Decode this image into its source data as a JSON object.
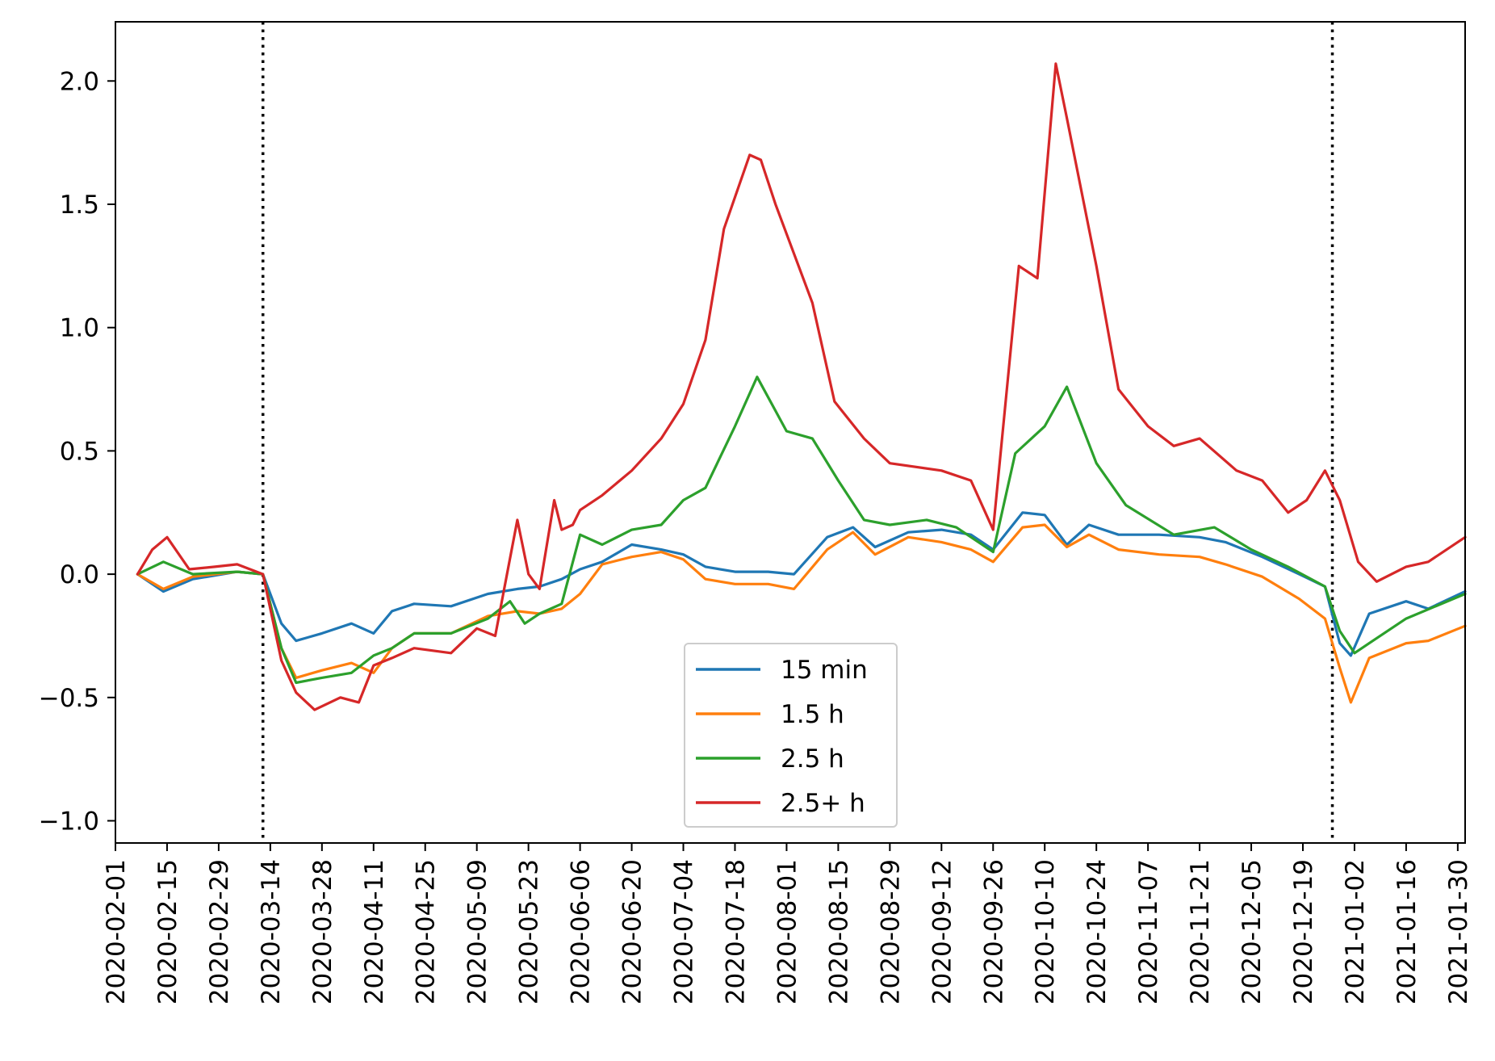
{
  "chart_data": {
    "type": "line",
    "title": "",
    "xlabel": "",
    "ylabel": "",
    "ylim": [
      -1.09,
      2.24
    ],
    "xlim": [
      "2020-02-01",
      "2021-02-01"
    ],
    "grid": false,
    "legend_position": "lower center",
    "x_ticks": [
      "2020-02-01",
      "2020-02-15",
      "2020-02-29",
      "2020-03-14",
      "2020-03-28",
      "2020-04-11",
      "2020-04-25",
      "2020-05-09",
      "2020-05-23",
      "2020-06-06",
      "2020-06-20",
      "2020-07-04",
      "2020-07-18",
      "2020-08-01",
      "2020-08-15",
      "2020-08-29",
      "2020-09-12",
      "2020-09-26",
      "2020-10-10",
      "2020-10-24",
      "2020-11-07",
      "2020-11-21",
      "2020-12-05",
      "2020-12-19",
      "2021-01-02",
      "2021-01-16",
      "2021-01-30"
    ],
    "y_ticks": [
      {
        "value": -1.0,
        "label": "−1.0"
      },
      {
        "value": -0.5,
        "label": "−0.5"
      },
      {
        "value": 0.0,
        "label": "0.0"
      },
      {
        "value": 0.5,
        "label": "0.5"
      },
      {
        "value": 1.0,
        "label": "1.0"
      },
      {
        "value": 1.5,
        "label": "1.5"
      },
      {
        "value": 2.0,
        "label": "2.0"
      }
    ],
    "vlines": [
      "2020-03-12",
      "2020-12-27"
    ],
    "series": [
      {
        "name": "15 min",
        "color": "#1f77b4",
        "x": [
          "2020-02-07",
          "2020-02-14",
          "2020-02-22",
          "2020-03-05",
          "2020-03-12",
          "2020-03-17",
          "2020-03-21",
          "2020-03-28",
          "2020-04-05",
          "2020-04-11",
          "2020-04-16",
          "2020-04-22",
          "2020-05-02",
          "2020-05-12",
          "2020-05-20",
          "2020-05-26",
          "2020-06-01",
          "2020-06-06",
          "2020-06-12",
          "2020-06-20",
          "2020-06-28",
          "2020-07-04",
          "2020-07-10",
          "2020-07-18",
          "2020-07-27",
          "2020-08-03",
          "2020-08-12",
          "2020-08-19",
          "2020-08-25",
          "2020-09-03",
          "2020-09-12",
          "2020-09-20",
          "2020-09-26",
          "2020-10-04",
          "2020-10-10",
          "2020-10-16",
          "2020-10-22",
          "2020-10-30",
          "2020-11-10",
          "2020-11-21",
          "2020-11-28",
          "2020-12-08",
          "2020-12-18",
          "2020-12-25",
          "2020-12-29",
          "2021-01-01",
          "2021-01-06",
          "2021-01-16",
          "2021-01-22",
          "2021-02-01"
        ],
        "values": [
          0.0,
          -0.07,
          -0.02,
          0.01,
          0.0,
          -0.2,
          -0.27,
          -0.24,
          -0.2,
          -0.24,
          -0.15,
          -0.12,
          -0.13,
          -0.08,
          -0.06,
          -0.05,
          -0.02,
          0.02,
          0.05,
          0.12,
          0.1,
          0.08,
          0.03,
          0.01,
          0.01,
          0.0,
          0.15,
          0.19,
          0.11,
          0.17,
          0.18,
          0.16,
          0.1,
          0.25,
          0.24,
          0.12,
          0.2,
          0.16,
          0.16,
          0.15,
          0.13,
          0.07,
          0.0,
          -0.05,
          -0.28,
          -0.33,
          -0.16,
          -0.11,
          -0.14,
          -0.07
        ]
      },
      {
        "name": "1.5 h",
        "color": "#ff7f0e",
        "x": [
          "2020-02-07",
          "2020-02-14",
          "2020-02-22",
          "2020-03-05",
          "2020-03-12",
          "2020-03-17",
          "2020-03-21",
          "2020-03-28",
          "2020-04-05",
          "2020-04-11",
          "2020-04-16",
          "2020-04-22",
          "2020-05-02",
          "2020-05-12",
          "2020-05-20",
          "2020-05-26",
          "2020-06-01",
          "2020-06-06",
          "2020-06-12",
          "2020-06-20",
          "2020-06-28",
          "2020-07-04",
          "2020-07-10",
          "2020-07-18",
          "2020-07-27",
          "2020-08-03",
          "2020-08-12",
          "2020-08-19",
          "2020-08-25",
          "2020-09-03",
          "2020-09-12",
          "2020-09-20",
          "2020-09-26",
          "2020-10-04",
          "2020-10-10",
          "2020-10-16",
          "2020-10-22",
          "2020-10-30",
          "2020-11-10",
          "2020-11-21",
          "2020-11-28",
          "2020-12-08",
          "2020-12-18",
          "2020-12-25",
          "2020-12-29",
          "2021-01-01",
          "2021-01-06",
          "2021-01-16",
          "2021-01-22",
          "2021-02-01"
        ],
        "values": [
          0.0,
          -0.06,
          -0.01,
          0.01,
          0.0,
          -0.3,
          -0.42,
          -0.39,
          -0.36,
          -0.4,
          -0.3,
          -0.24,
          -0.24,
          -0.17,
          -0.15,
          -0.16,
          -0.14,
          -0.08,
          0.04,
          0.07,
          0.09,
          0.06,
          -0.02,
          -0.04,
          -0.04,
          -0.06,
          0.1,
          0.17,
          0.08,
          0.15,
          0.13,
          0.1,
          0.05,
          0.19,
          0.2,
          0.11,
          0.16,
          0.1,
          0.08,
          0.07,
          0.04,
          -0.01,
          -0.1,
          -0.18,
          -0.38,
          -0.52,
          -0.34,
          -0.28,
          -0.27,
          -0.21
        ]
      },
      {
        "name": "2.5 h",
        "color": "#2ca02c",
        "x": [
          "2020-02-07",
          "2020-02-14",
          "2020-02-22",
          "2020-03-05",
          "2020-03-12",
          "2020-03-17",
          "2020-03-21",
          "2020-03-28",
          "2020-04-05",
          "2020-04-11",
          "2020-04-16",
          "2020-04-22",
          "2020-05-02",
          "2020-05-12",
          "2020-05-18",
          "2020-05-22",
          "2020-05-26",
          "2020-06-01",
          "2020-06-06",
          "2020-06-12",
          "2020-06-20",
          "2020-06-28",
          "2020-07-04",
          "2020-07-10",
          "2020-07-18",
          "2020-07-24",
          "2020-08-01",
          "2020-08-08",
          "2020-08-15",
          "2020-08-22",
          "2020-08-29",
          "2020-09-08",
          "2020-09-16",
          "2020-09-26",
          "2020-10-02",
          "2020-10-10",
          "2020-10-16",
          "2020-10-24",
          "2020-11-01",
          "2020-11-14",
          "2020-11-25",
          "2020-12-05",
          "2020-12-15",
          "2020-12-25",
          "2020-12-29",
          "2021-01-02",
          "2021-01-06",
          "2021-01-16",
          "2021-02-01"
        ],
        "values": [
          0.0,
          0.05,
          0.0,
          0.01,
          0.0,
          -0.3,
          -0.44,
          -0.42,
          -0.4,
          -0.33,
          -0.3,
          -0.24,
          -0.24,
          -0.18,
          -0.11,
          -0.2,
          -0.16,
          -0.12,
          0.16,
          0.12,
          0.18,
          0.2,
          0.3,
          0.35,
          0.6,
          0.8,
          0.58,
          0.55,
          0.38,
          0.22,
          0.2,
          0.22,
          0.19,
          0.09,
          0.49,
          0.6,
          0.76,
          0.45,
          0.28,
          0.16,
          0.19,
          0.1,
          0.03,
          -0.05,
          -0.23,
          -0.32,
          -0.28,
          -0.18,
          -0.08
        ]
      },
      {
        "name": "2.5+ h",
        "color": "#d62728",
        "x": [
          "2020-02-07",
          "2020-02-11",
          "2020-02-15",
          "2020-02-21",
          "2020-02-28",
          "2020-03-05",
          "2020-03-12",
          "2020-03-17",
          "2020-03-21",
          "2020-03-26",
          "2020-04-02",
          "2020-04-07",
          "2020-04-11",
          "2020-04-16",
          "2020-04-22",
          "2020-05-02",
          "2020-05-09",
          "2020-05-14",
          "2020-05-20",
          "2020-05-23",
          "2020-05-26",
          "2020-05-30",
          "2020-06-01",
          "2020-06-04",
          "2020-06-06",
          "2020-06-12",
          "2020-06-20",
          "2020-06-28",
          "2020-07-04",
          "2020-07-10",
          "2020-07-15",
          "2020-07-22",
          "2020-07-25",
          "2020-07-29",
          "2020-08-08",
          "2020-08-14",
          "2020-08-22",
          "2020-08-29",
          "2020-09-12",
          "2020-09-20",
          "2020-09-26",
          "2020-10-03",
          "2020-10-08",
          "2020-10-13",
          "2020-10-16",
          "2020-10-24",
          "2020-10-30",
          "2020-11-07",
          "2020-11-14",
          "2020-11-21",
          "2020-12-01",
          "2020-12-08",
          "2020-12-15",
          "2020-12-20",
          "2020-12-25",
          "2020-12-29",
          "2021-01-03",
          "2021-01-08",
          "2021-01-16",
          "2021-01-22",
          "2021-02-01"
        ],
        "values": [
          0.0,
          0.1,
          0.15,
          0.02,
          0.03,
          0.04,
          0.0,
          -0.35,
          -0.48,
          -0.55,
          -0.5,
          -0.52,
          -0.37,
          -0.34,
          -0.3,
          -0.32,
          -0.22,
          -0.25,
          0.22,
          0.0,
          -0.06,
          0.3,
          0.18,
          0.2,
          0.26,
          0.32,
          0.42,
          0.55,
          0.69,
          0.95,
          1.4,
          1.7,
          1.68,
          1.5,
          1.1,
          0.7,
          0.55,
          0.45,
          0.42,
          0.38,
          0.18,
          1.25,
          1.2,
          2.07,
          1.85,
          1.25,
          0.75,
          0.6,
          0.52,
          0.55,
          0.42,
          0.38,
          0.25,
          0.3,
          0.42,
          0.3,
          0.05,
          -0.03,
          0.03,
          0.05,
          0.15
        ]
      }
    ]
  }
}
